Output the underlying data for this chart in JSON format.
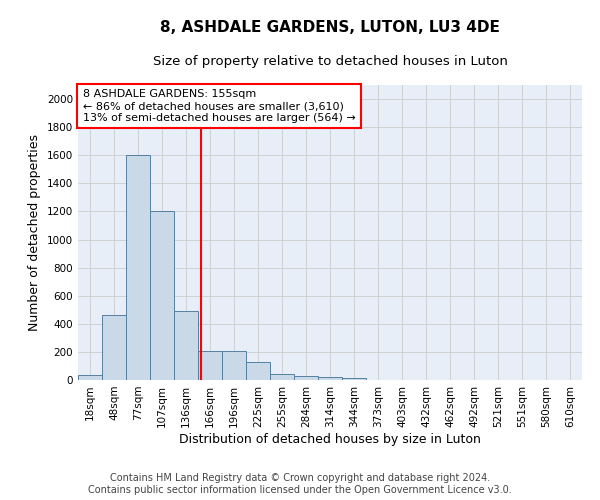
{
  "title": "8, ASHDALE GARDENS, LUTON, LU3 4DE",
  "subtitle": "Size of property relative to detached houses in Luton",
  "xlabel": "Distribution of detached houses by size in Luton",
  "ylabel": "Number of detached properties",
  "footer_line1": "Contains HM Land Registry data © Crown copyright and database right 2024.",
  "footer_line2": "Contains public sector information licensed under the Open Government Licence v3.0.",
  "bar_labels": [
    "18sqm",
    "48sqm",
    "77sqm",
    "107sqm",
    "136sqm",
    "166sqm",
    "196sqm",
    "225sqm",
    "255sqm",
    "284sqm",
    "314sqm",
    "344sqm",
    "373sqm",
    "403sqm",
    "432sqm",
    "462sqm",
    "492sqm",
    "521sqm",
    "551sqm",
    "580sqm",
    "610sqm"
  ],
  "bar_values": [
    35,
    460,
    1600,
    1200,
    490,
    210,
    210,
    130,
    45,
    30,
    20,
    15,
    0,
    0,
    0,
    0,
    0,
    0,
    0,
    0,
    0
  ],
  "bar_color": "#c9d9e8",
  "bar_edge_color": "#5580a0",
  "grid_color": "#cccccc",
  "bg_color": "#e8eef8",
  "vline_color": "red",
  "annotation_text": "8 ASHDALE GARDENS: 155sqm\n← 86% of detached houses are smaller (3,610)\n13% of semi-detached houses are larger (564) →",
  "annotation_box_color": "white",
  "annotation_edge_color": "red",
  "ylim": [
    0,
    2100
  ],
  "yticks": [
    0,
    200,
    400,
    600,
    800,
    1000,
    1200,
    1400,
    1600,
    1800,
    2000
  ],
  "title_fontsize": 11,
  "subtitle_fontsize": 9.5,
  "xlabel_fontsize": 9,
  "ylabel_fontsize": 9,
  "tick_fontsize": 7.5,
  "annotation_fontsize": 8,
  "footer_fontsize": 7
}
